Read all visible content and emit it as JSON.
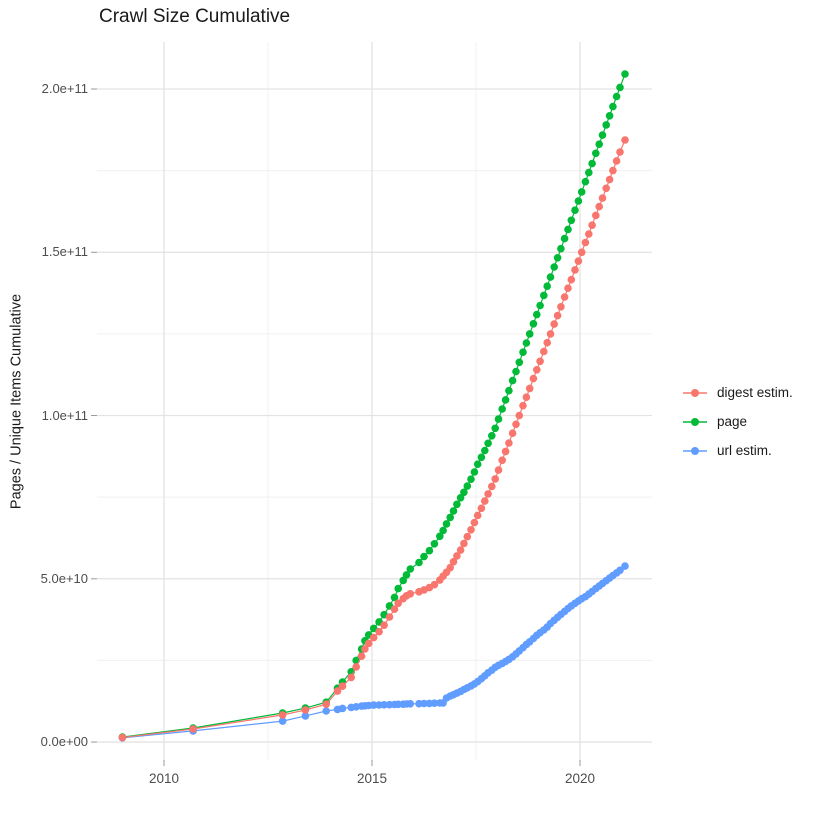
{
  "title": "Crawl Size Cumulative",
  "chart_data": {
    "type": "scatter",
    "title": "Crawl Size Cumulative",
    "xlabel": "",
    "ylabel": "Pages / Unique Items Cumulative",
    "x_ticks": [
      "2010",
      "2015",
      "2020"
    ],
    "x_tick_values": [
      2010,
      2015,
      2020
    ],
    "x_minor_ticks": [
      2012.5,
      2017.5
    ],
    "y_ticks": [
      "0.0e+00",
      "5.0e+10",
      "1.0e+11",
      "1.5e+11",
      "2.0e+11"
    ],
    "y_tick_values_e9": [
      0,
      50,
      100,
      150,
      200
    ],
    "y_minor_ticks_e9": [
      25,
      75,
      125,
      175
    ],
    "xlim": [
      2008.39,
      2021.73
    ],
    "ylim_e9": [
      -5.5,
      214.4
    ],
    "value_scale": "1e9 (values stored in billions)",
    "grid": "major and minor, light gray on white",
    "legend_position": "right",
    "colors": {
      "digest": "#F8766D",
      "page": "#00BA38",
      "url": "#619CFF",
      "grid_major": "#E3E3E3",
      "grid_minor": "#F0F0F0",
      "tick": "#999999",
      "tick_text": "#4d4d4d",
      "text": "#1a1a1a"
    },
    "legend": [
      {
        "label": "digest estim.",
        "color": "#F8766D"
      },
      {
        "label": "page",
        "color": "#00BA38"
      },
      {
        "label": "url estim.",
        "color": "#619CFF"
      }
    ],
    "series": [
      {
        "name": "digest estim.",
        "color": "#F8766D",
        "points": [
          [
            2009.0,
            1.4
          ],
          [
            2010.7,
            4.0
          ],
          [
            2012.85,
            8.3
          ],
          [
            2013.4,
            9.8
          ],
          [
            2013.9,
            11.6
          ],
          [
            2014.17,
            15.6
          ],
          [
            2014.29,
            17.1
          ],
          [
            2014.5,
            19.8
          ],
          [
            2014.62,
            23.0
          ],
          [
            2014.75,
            26.3
          ],
          [
            2014.83,
            28.5
          ],
          [
            2014.92,
            30.2
          ],
          [
            2015.04,
            32.0
          ],
          [
            2015.17,
            33.8
          ],
          [
            2015.29,
            35.8
          ],
          [
            2015.42,
            38.3
          ],
          [
            2015.54,
            40.7
          ],
          [
            2015.63,
            42.5
          ],
          [
            2015.75,
            43.9
          ],
          [
            2015.83,
            44.8
          ],
          [
            2015.92,
            45.4
          ],
          [
            2016.13,
            46.0
          ],
          [
            2016.25,
            46.6
          ],
          [
            2016.38,
            47.3
          ],
          [
            2016.5,
            48.2
          ],
          [
            2016.63,
            49.6
          ],
          [
            2016.71,
            50.8
          ],
          [
            2016.79,
            52.0
          ],
          [
            2016.88,
            53.4
          ],
          [
            2016.96,
            55.2
          ],
          [
            2017.04,
            57.0
          ],
          [
            2017.13,
            58.8
          ],
          [
            2017.21,
            60.8
          ],
          [
            2017.29,
            62.9
          ],
          [
            2017.38,
            65.0
          ],
          [
            2017.46,
            67.2
          ],
          [
            2017.54,
            69.4
          ],
          [
            2017.63,
            71.6
          ],
          [
            2017.71,
            73.8
          ],
          [
            2017.79,
            76.0
          ],
          [
            2017.88,
            78.3
          ],
          [
            2017.96,
            80.6
          ],
          [
            2018.04,
            83.3
          ],
          [
            2018.13,
            86.3
          ],
          [
            2018.21,
            89.0
          ],
          [
            2018.29,
            91.6
          ],
          [
            2018.38,
            94.6
          ],
          [
            2018.46,
            97.3
          ],
          [
            2018.54,
            100.0
          ],
          [
            2018.63,
            103.0
          ],
          [
            2018.71,
            105.6
          ],
          [
            2018.79,
            108.3
          ],
          [
            2018.88,
            111.3
          ],
          [
            2018.96,
            114.0
          ],
          [
            2019.04,
            116.6
          ],
          [
            2019.13,
            119.6
          ],
          [
            2019.21,
            122.3
          ],
          [
            2019.29,
            125.0
          ],
          [
            2019.38,
            128.0
          ],
          [
            2019.46,
            130.6
          ],
          [
            2019.54,
            133.3
          ],
          [
            2019.63,
            136.3
          ],
          [
            2019.71,
            139.0
          ],
          [
            2019.79,
            141.6
          ],
          [
            2019.88,
            144.6
          ],
          [
            2019.96,
            147.3
          ],
          [
            2020.04,
            150.0
          ],
          [
            2020.13,
            153.0
          ],
          [
            2020.21,
            155.6
          ],
          [
            2020.29,
            158.3
          ],
          [
            2020.38,
            161.3
          ],
          [
            2020.46,
            164.0
          ],
          [
            2020.54,
            166.6
          ],
          [
            2020.63,
            169.6
          ],
          [
            2020.71,
            172.3
          ],
          [
            2020.79,
            175.0
          ],
          [
            2020.88,
            178.0
          ],
          [
            2020.96,
            180.7
          ],
          [
            2021.08,
            184.4
          ]
        ]
      },
      {
        "name": "page",
        "color": "#00BA38",
        "points": [
          [
            2009.0,
            1.5
          ],
          [
            2010.7,
            4.3
          ],
          [
            2012.85,
            8.9
          ],
          [
            2013.4,
            10.4
          ],
          [
            2013.9,
            12.2
          ],
          [
            2014.17,
            16.5
          ],
          [
            2014.29,
            18.4
          ],
          [
            2014.5,
            21.5
          ],
          [
            2014.62,
            25.0
          ],
          [
            2014.75,
            28.5
          ],
          [
            2014.83,
            31.0
          ],
          [
            2014.92,
            32.8
          ],
          [
            2015.04,
            34.8
          ],
          [
            2015.17,
            36.8
          ],
          [
            2015.29,
            39.0
          ],
          [
            2015.42,
            41.7
          ],
          [
            2015.54,
            44.3
          ],
          [
            2015.63,
            47.0
          ],
          [
            2015.75,
            49.5
          ],
          [
            2015.83,
            51.2
          ],
          [
            2015.92,
            53.0
          ],
          [
            2016.13,
            55.0
          ],
          [
            2016.25,
            56.8
          ],
          [
            2016.38,
            58.6
          ],
          [
            2016.5,
            60.7
          ],
          [
            2016.63,
            63.0
          ],
          [
            2016.71,
            64.8
          ],
          [
            2016.79,
            66.8
          ],
          [
            2016.88,
            68.8
          ],
          [
            2016.96,
            70.8
          ],
          [
            2017.04,
            72.8
          ],
          [
            2017.13,
            74.8
          ],
          [
            2017.21,
            76.5
          ],
          [
            2017.29,
            78.4
          ],
          [
            2017.38,
            80.5
          ],
          [
            2017.46,
            82.7
          ],
          [
            2017.54,
            85.1
          ],
          [
            2017.63,
            87.2
          ],
          [
            2017.71,
            89.3
          ],
          [
            2017.79,
            91.5
          ],
          [
            2017.88,
            93.8
          ],
          [
            2017.96,
            96.1
          ],
          [
            2018.04,
            98.9
          ],
          [
            2018.13,
            102.0
          ],
          [
            2018.21,
            104.8
          ],
          [
            2018.29,
            107.6
          ],
          [
            2018.38,
            110.7
          ],
          [
            2018.46,
            113.5
          ],
          [
            2018.54,
            116.3
          ],
          [
            2018.63,
            119.4
          ],
          [
            2018.71,
            122.2
          ],
          [
            2018.79,
            125.0
          ],
          [
            2018.88,
            128.1
          ],
          [
            2018.96,
            130.9
          ],
          [
            2019.04,
            133.7
          ],
          [
            2019.13,
            136.8
          ],
          [
            2019.21,
            139.6
          ],
          [
            2019.29,
            142.4
          ],
          [
            2019.38,
            145.5
          ],
          [
            2019.46,
            148.3
          ],
          [
            2019.54,
            151.1
          ],
          [
            2019.63,
            154.2
          ],
          [
            2019.71,
            157.0
          ],
          [
            2019.79,
            159.8
          ],
          [
            2019.88,
            162.9
          ],
          [
            2019.96,
            165.7
          ],
          [
            2020.04,
            168.5
          ],
          [
            2020.13,
            171.6
          ],
          [
            2020.21,
            174.4
          ],
          [
            2020.29,
            177.2
          ],
          [
            2020.38,
            180.3
          ],
          [
            2020.46,
            183.1
          ],
          [
            2020.54,
            185.9
          ],
          [
            2020.63,
            189.0
          ],
          [
            2020.71,
            191.8
          ],
          [
            2020.79,
            194.6
          ],
          [
            2020.88,
            197.7
          ],
          [
            2020.96,
            200.5
          ],
          [
            2021.08,
            204.6
          ]
        ]
      },
      {
        "name": "url estim.",
        "color": "#619CFF",
        "points": [
          [
            2009.0,
            1.3
          ],
          [
            2010.7,
            3.4
          ],
          [
            2012.85,
            6.4
          ],
          [
            2013.4,
            8.0
          ],
          [
            2013.9,
            9.5
          ],
          [
            2014.17,
            10.0
          ],
          [
            2014.29,
            10.3
          ],
          [
            2014.5,
            10.6
          ],
          [
            2014.62,
            10.8
          ],
          [
            2014.75,
            11.0
          ],
          [
            2014.83,
            11.1
          ],
          [
            2014.92,
            11.2
          ],
          [
            2015.04,
            11.3
          ],
          [
            2015.17,
            11.35
          ],
          [
            2015.29,
            11.4
          ],
          [
            2015.42,
            11.45
          ],
          [
            2015.54,
            11.5
          ],
          [
            2015.63,
            11.55
          ],
          [
            2015.75,
            11.6
          ],
          [
            2015.83,
            11.65
          ],
          [
            2015.92,
            11.7
          ],
          [
            2016.13,
            11.75
          ],
          [
            2016.25,
            11.8
          ],
          [
            2016.38,
            11.85
          ],
          [
            2016.5,
            11.9
          ],
          [
            2016.63,
            11.95
          ],
          [
            2016.71,
            12.0
          ],
          [
            2016.79,
            13.5
          ],
          [
            2016.88,
            14.1
          ],
          [
            2016.96,
            14.5
          ],
          [
            2017.04,
            15.0
          ],
          [
            2017.13,
            15.5
          ],
          [
            2017.21,
            16.1
          ],
          [
            2017.29,
            16.6
          ],
          [
            2017.38,
            17.2
          ],
          [
            2017.46,
            17.8
          ],
          [
            2017.54,
            18.5
          ],
          [
            2017.63,
            19.4
          ],
          [
            2017.71,
            20.3
          ],
          [
            2017.79,
            21.2
          ],
          [
            2017.88,
            22.0
          ],
          [
            2017.96,
            22.9
          ],
          [
            2018.04,
            23.5
          ],
          [
            2018.13,
            24.1
          ],
          [
            2018.21,
            24.7
          ],
          [
            2018.29,
            25.3
          ],
          [
            2018.38,
            26.1
          ],
          [
            2018.46,
            27.0
          ],
          [
            2018.54,
            27.9
          ],
          [
            2018.63,
            28.9
          ],
          [
            2018.71,
            29.9
          ],
          [
            2018.79,
            30.7
          ],
          [
            2018.88,
            31.7
          ],
          [
            2018.96,
            32.7
          ],
          [
            2019.04,
            33.5
          ],
          [
            2019.13,
            34.3
          ],
          [
            2019.21,
            35.2
          ],
          [
            2019.29,
            36.3
          ],
          [
            2019.38,
            37.3
          ],
          [
            2019.46,
            38.2
          ],
          [
            2019.54,
            39.1
          ],
          [
            2019.63,
            40.0
          ],
          [
            2019.71,
            40.9
          ],
          [
            2019.79,
            41.7
          ],
          [
            2019.88,
            42.5
          ],
          [
            2019.96,
            43.2
          ],
          [
            2020.04,
            43.9
          ],
          [
            2020.13,
            44.5
          ],
          [
            2020.21,
            45.3
          ],
          [
            2020.29,
            46.1
          ],
          [
            2020.38,
            47.0
          ],
          [
            2020.46,
            47.8
          ],
          [
            2020.54,
            48.6
          ],
          [
            2020.63,
            49.4
          ],
          [
            2020.71,
            50.2
          ],
          [
            2020.79,
            51.0
          ],
          [
            2020.88,
            51.8
          ],
          [
            2020.96,
            52.6
          ],
          [
            2021.08,
            53.9
          ]
        ]
      }
    ]
  }
}
